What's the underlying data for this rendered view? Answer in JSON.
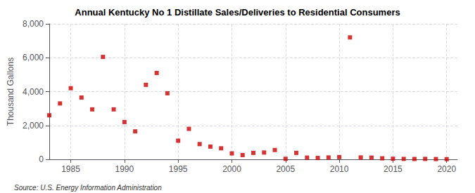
{
  "chart_data": {
    "type": "scatter",
    "title": "Annual Kentucky No 1 Distillate Sales/Deliveries to Residential Consumers",
    "ylabel": "Thousand Gallons",
    "annotations": [
      "Source: U.S. Energy Information Administration"
    ],
    "x": [
      1983,
      1984,
      1985,
      1986,
      1987,
      1988,
      1989,
      1990,
      1991,
      1992,
      1993,
      1994,
      1995,
      1996,
      1997,
      1998,
      1999,
      2000,
      2001,
      2002,
      2003,
      2004,
      2005,
      2006,
      2007,
      2008,
      2009,
      2010,
      2011,
      2012,
      2013,
      2014,
      2015,
      2016,
      2017,
      2018,
      2019,
      2020
    ],
    "values": [
      2600,
      3300,
      4200,
      3650,
      2950,
      6050,
      2950,
      2200,
      1650,
      4400,
      5100,
      3900,
      1100,
      1800,
      900,
      750,
      650,
      350,
      250,
      380,
      400,
      550,
      30,
      380,
      100,
      80,
      110,
      130,
      7200,
      110,
      100,
      60,
      35,
      25,
      20,
      25,
      15,
      10
    ],
    "color": "#cc0000",
    "marker": "square",
    "xlim": [
      1983,
      2021
    ],
    "xticks": [
      1985,
      1990,
      1995,
      2000,
      2005,
      2010,
      2015,
      2020
    ],
    "ylim": [
      0,
      8000
    ],
    "yticks": [
      0,
      {
        "value": 2000,
        "label": "2,000"
      },
      {
        "value": 4000,
        "label": "4,000"
      },
      {
        "value": 6000,
        "label": "6,000"
      },
      {
        "value": 8000,
        "label": "8,000"
      }
    ],
    "grid": true
  }
}
